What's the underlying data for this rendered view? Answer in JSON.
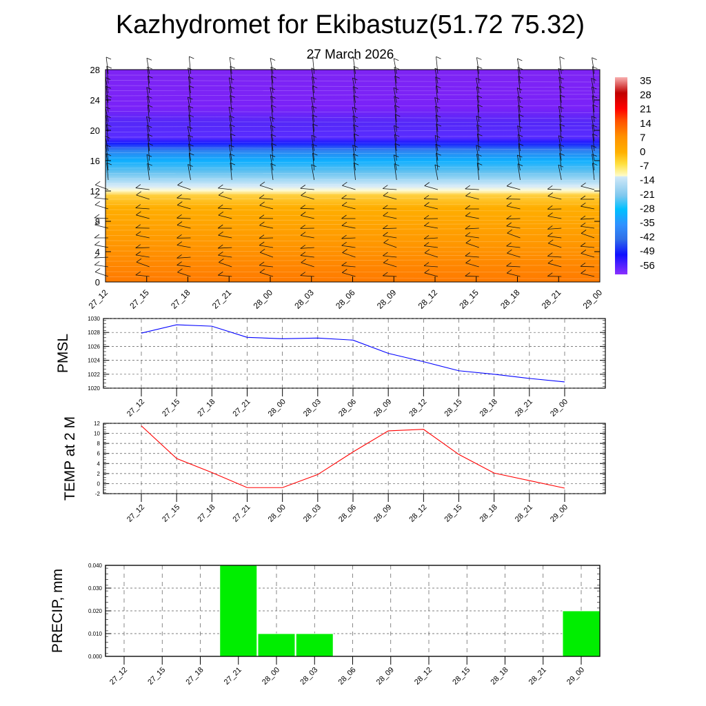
{
  "title": "Kazhydromet for Ekibastuz(51.72 75.32)",
  "subtitle": "27 March 2026",
  "time_labels": [
    "27_12",
    "27_15",
    "27_18",
    "27_21",
    "28_00",
    "28_03",
    "28_06",
    "28_09",
    "28_12",
    "28_15",
    "28_18",
    "28_21",
    "29_00"
  ],
  "chart_data": [
    {
      "type": "heatmap",
      "name": "vertical temperature cross-section with wind barbs",
      "yticks": [
        0,
        4,
        8,
        12,
        16,
        20,
        24,
        28
      ],
      "ylim": [
        0,
        28
      ],
      "colorbar_labels": [
        "35",
        "28",
        "21",
        "14",
        "7",
        "0",
        "-7",
        "-14",
        "-21",
        "-28",
        "-35",
        "-42",
        "-49",
        "-56"
      ],
      "colorbar_range": [
        -60,
        35
      ]
    },
    {
      "type": "line",
      "ylabel": "PMSL",
      "ylim": [
        1020,
        1030
      ],
      "yticks": [
        "1020",
        "1022",
        "1024",
        "1026",
        "1028",
        "1030"
      ],
      "color": "#0000ff",
      "values": [
        1027.9,
        1029.1,
        1028.9,
        1027.3,
        1027.1,
        1027.2,
        1026.9,
        1025.0,
        1023.8,
        1022.5,
        1022.0,
        1021.4,
        1020.9
      ]
    },
    {
      "type": "line",
      "ylabel": "TEMP at 2 M",
      "ylim": [
        -2,
        12
      ],
      "yticks": [
        "-2",
        "0",
        "2",
        "4",
        "6",
        "8",
        "10",
        "12"
      ],
      "color": "#ff0000",
      "values": [
        11.5,
        5.0,
        2.2,
        -0.8,
        -0.8,
        1.8,
        6.3,
        10.5,
        10.8,
        5.8,
        2.1,
        0.6,
        -0.9
      ]
    },
    {
      "type": "bar",
      "ylabel": "PRECIP, mm",
      "ylim": [
        0,
        0.04
      ],
      "yticks": [
        "0.000",
        "0.010",
        "0.020",
        "0.030",
        "0.040"
      ],
      "color": "#00ee00",
      "values": [
        0,
        0,
        0,
        0.04,
        0.01,
        0.01,
        0,
        0,
        0,
        0,
        0,
        0,
        0.02
      ]
    }
  ]
}
